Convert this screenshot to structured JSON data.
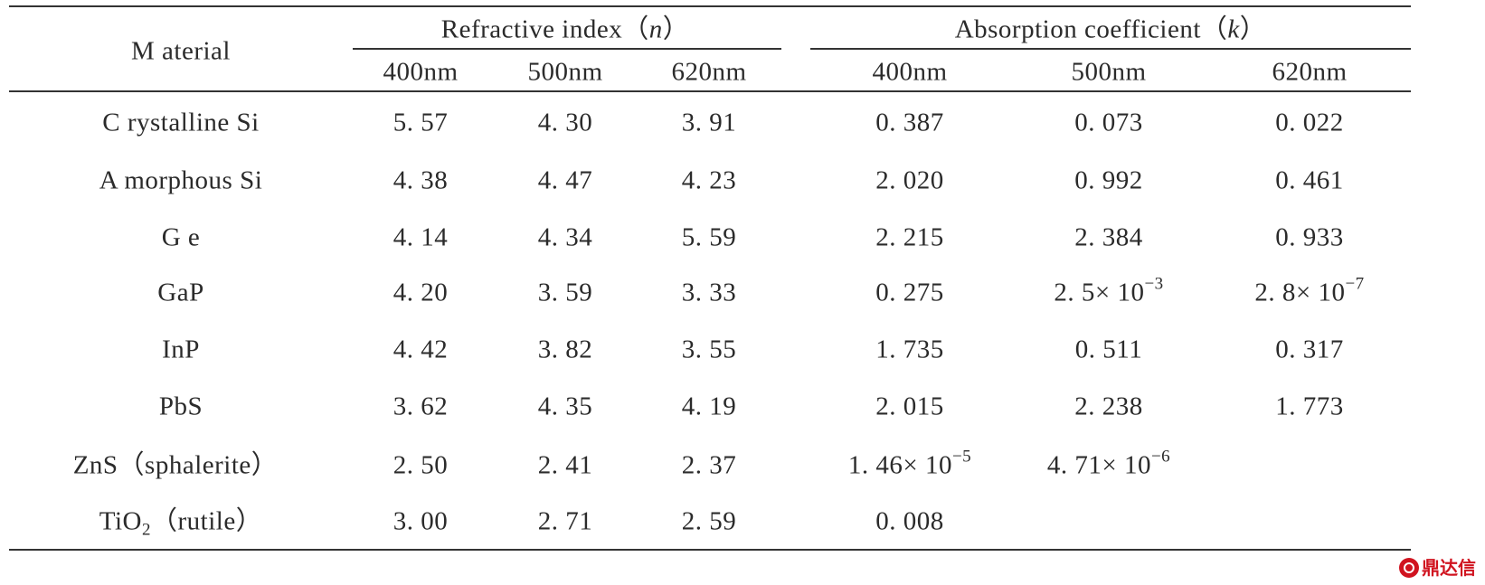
{
  "table": {
    "header": {
      "material": "M aterial",
      "refractive": {
        "label": "Refractive index（",
        "symbol": "n",
        "close": "）"
      },
      "absorption": {
        "label": "Absorption coefficient（",
        "symbol": "k",
        "close": "）"
      },
      "wavelengths": [
        "400nm",
        "500nm",
        "620nm",
        "400nm",
        "500nm",
        "620nm"
      ]
    },
    "rows": [
      {
        "material": "C rystalline Si",
        "n": [
          "5. 57",
          "4. 30",
          "3. 91"
        ],
        "k": [
          "0. 387",
          "0. 073",
          "0. 022"
        ]
      },
      {
        "material": "A morphous Si",
        "n": [
          "4. 38",
          "4. 47",
          "4. 23"
        ],
        "k": [
          "2. 020",
          "0. 992",
          "0. 461"
        ]
      },
      {
        "material": "G e",
        "n": [
          "4. 14",
          "4. 34",
          "5. 59"
        ],
        "k": [
          "2. 215",
          "2. 384",
          "0. 933"
        ]
      },
      {
        "material": "GaP",
        "n": [
          "4. 20",
          "3. 59",
          "3. 33"
        ],
        "k": [
          "0. 275",
          "2. 5× 10",
          "2. 8× 10"
        ],
        "k_exp": [
          "",
          "−3",
          "−7"
        ]
      },
      {
        "material": "InP",
        "n": [
          "4. 42",
          "3. 82",
          "3. 55"
        ],
        "k": [
          "1. 735",
          "0. 511",
          "0. 317"
        ]
      },
      {
        "material": "PbS",
        "n": [
          "3. 62",
          "4. 35",
          "4. 19"
        ],
        "k": [
          "2. 015",
          "2. 238",
          "1. 773"
        ]
      },
      {
        "material": "ZnS（sphalerite）",
        "n": [
          "2. 50",
          "2. 41",
          "2. 37"
        ],
        "k": [
          "1. 46× 10",
          "4. 71× 10",
          ""
        ],
        "k_exp": [
          "−5",
          "−6",
          ""
        ]
      },
      {
        "material": "TiO",
        "material_sub": "2",
        "material_rest": "（rutile）",
        "n": [
          "3. 00",
          "2. 71",
          "2. 59"
        ],
        "k": [
          "0. 008",
          "",
          ""
        ]
      }
    ]
  },
  "watermark": {
    "text": "鼎达信",
    "icon": "logo-icon",
    "color": "#d0131f"
  }
}
